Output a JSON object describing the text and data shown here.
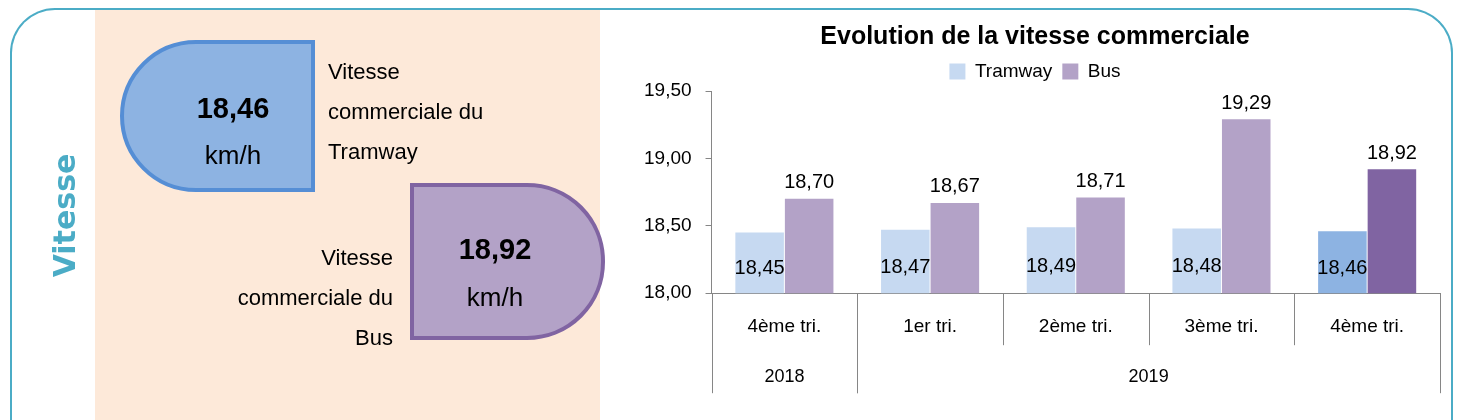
{
  "chart_data": [
    {
      "type": "other",
      "title": "Vitesse",
      "annotations": [
        "18,46",
        "km/h",
        "Vitesse commerciale du Tramway",
        "18,92",
        "km/h",
        "Vitesse commerciale du Bus"
      ]
    },
    {
      "type": "bar",
      "title": "Evolution de la vitesse commerciale",
      "categories": [
        "4ème tri.",
        "1er tri.",
        "2ème tri.",
        "3ème tri.",
        "4ème tri."
      ],
      "series": [
        {
          "name": "Tramway",
          "color": "#c6d9f1",
          "colors": [
            "#c6d9f1",
            "#c6d9f1",
            "#c6d9f1",
            "#c6d9f1",
            "#8db3e2"
          ],
          "values": [
            18.45,
            18.47,
            18.49,
            18.48,
            18.46
          ],
          "value_labels": [
            "18,45",
            "18,47",
            "18,49",
            "18,48",
            "18,46"
          ]
        },
        {
          "name": "Bus",
          "color": "#b3a2c7",
          "colors": [
            "#b3a2c7",
            "#b3a2c7",
            "#b3a2c7",
            "#b3a2c7",
            "#8064a2"
          ],
          "values": [
            18.7,
            18.67,
            18.71,
            19.29,
            18.92
          ],
          "value_labels": [
            "18,70",
            "18,67",
            "18,71",
            "19,29",
            "18,92"
          ]
        }
      ],
      "ylim": [
        18,
        19.5
      ],
      "yticks": [
        {
          "value": 18,
          "label": "18,00"
        },
        {
          "value": 18.5,
          "label": "18,50"
        },
        {
          "value": 19,
          "label": "19,00"
        },
        {
          "value": 19.5,
          "label": "19,50"
        }
      ],
      "grid": false,
      "legend": "top",
      "annotations": [
        "2018",
        "2019"
      ]
    }
  ]
}
